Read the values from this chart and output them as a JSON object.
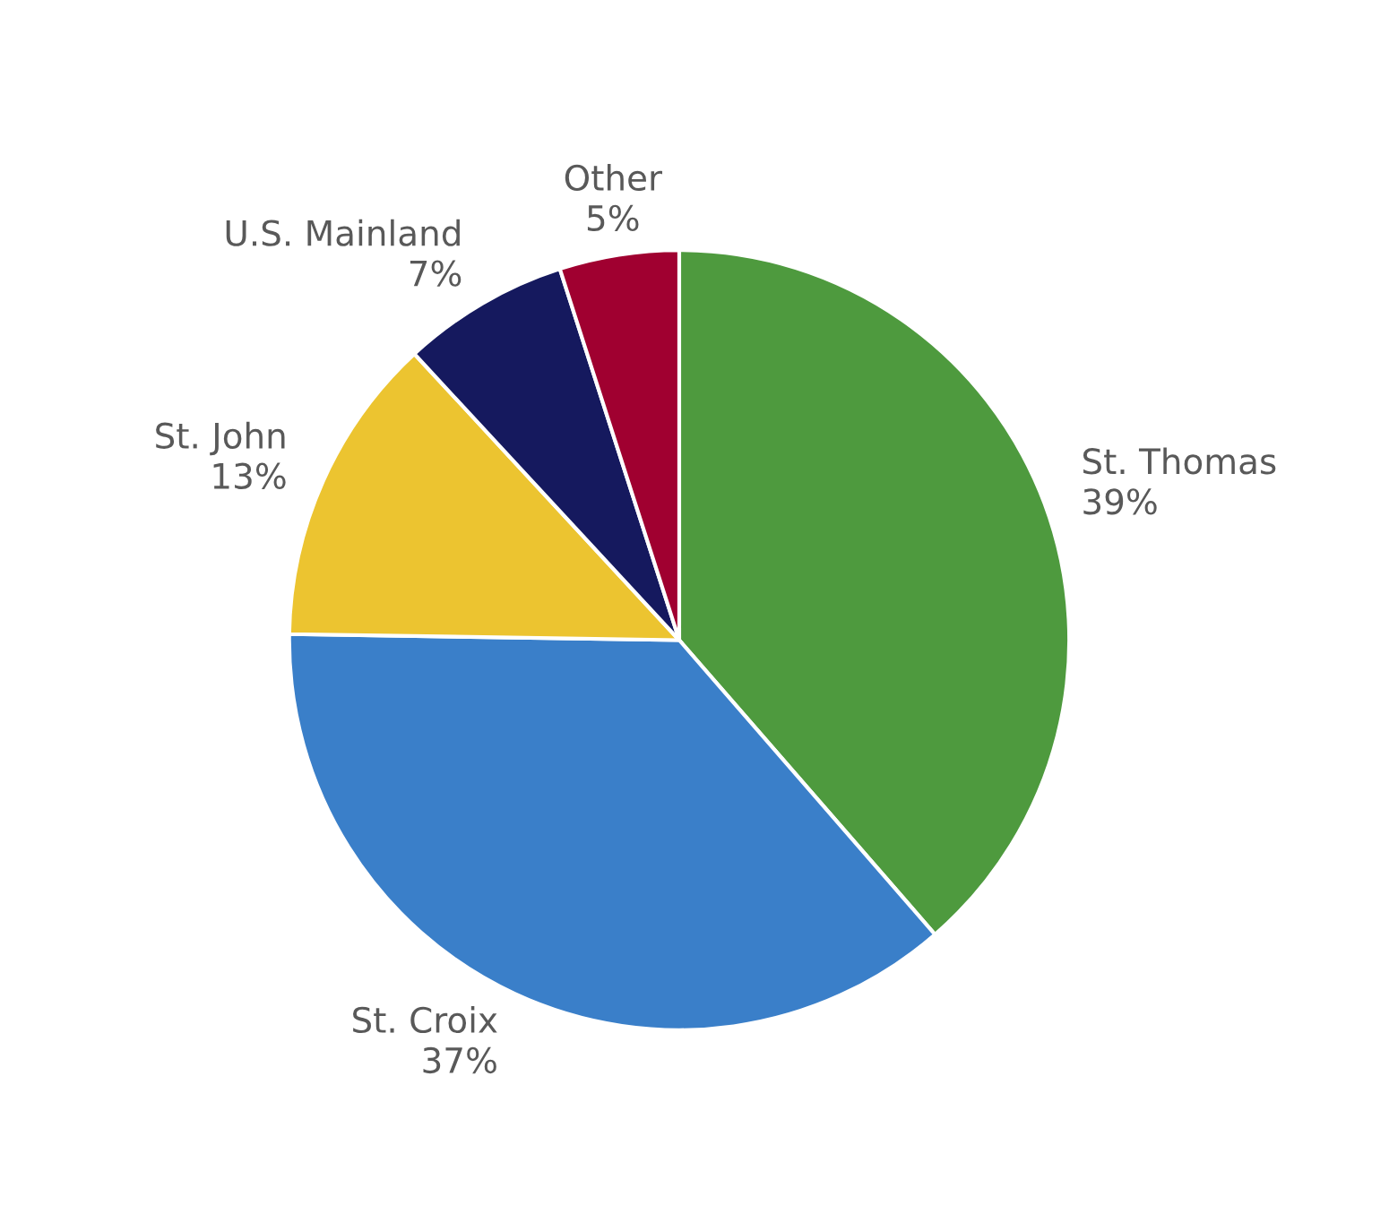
{
  "chart_data": {
    "type": "pie",
    "categories": [
      "St. Thomas",
      "St. Croix",
      "St. John",
      "U.S. Mainland",
      "Other"
    ],
    "values": [
      39,
      37,
      13,
      7,
      5
    ],
    "colors": [
      "#4e9a3e",
      "#3a7fc9",
      "#ecc430",
      "#15195e",
      "#a00030"
    ],
    "value_labels": [
      "39%",
      "37%",
      "13%",
      "7%",
      "5%"
    ]
  }
}
